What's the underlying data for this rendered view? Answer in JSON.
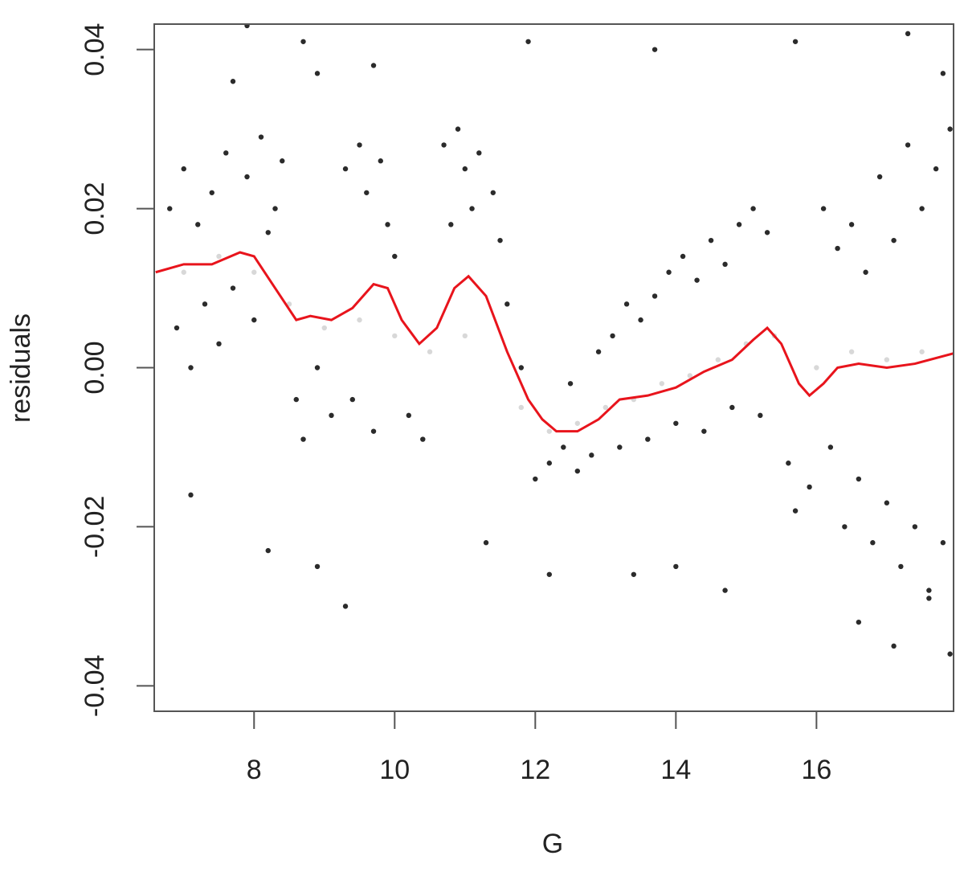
{
  "chart_data": {
    "type": "scatter",
    "x_label": "G",
    "y_label": "residuals",
    "xlim": [
      6.58,
      17.95
    ],
    "ylim": [
      -0.0432,
      0.0432
    ],
    "xticks": [
      8,
      10,
      12,
      14,
      16
    ],
    "yticks": [
      -0.04,
      -0.02,
      {
        "value": 0,
        "label": "0.00"
      },
      0.02,
      0.04
    ],
    "series": [
      {
        "color": "#2b2b2b",
        "x": [
          6.8,
          7.0,
          7.2,
          7.4,
          7.6,
          7.9,
          8.1,
          8.3,
          6.9,
          7.1,
          7.3,
          7.5,
          7.7,
          8.0,
          8.2,
          8.4,
          8.6,
          8.7,
          8.9,
          9.1,
          9.3,
          9.5,
          9.6,
          9.8,
          9.9,
          10.0,
          9.4,
          9.7,
          10.2,
          10.4,
          10.7,
          10.9,
          11.0,
          11.2,
          11.4,
          11.5,
          10.8,
          11.1,
          11.6,
          11.8,
          12.0,
          12.2,
          12.4,
          12.6,
          12.8,
          12.5,
          12.9,
          13.1,
          13.3,
          13.5,
          13.7,
          13.9,
          14.1,
          14.3,
          14.5,
          14.7,
          14.9,
          15.1,
          15.3,
          13.2,
          13.6,
          14.0,
          14.4,
          14.8,
          15.2,
          15.6,
          15.7,
          15.9,
          16.1,
          16.3,
          16.5,
          16.7,
          16.9,
          17.1,
          17.3,
          17.5,
          17.7,
          17.9,
          16.2,
          16.4,
          16.6,
          16.8,
          17.0,
          17.2,
          17.4,
          17.6,
          17.8,
          7.7,
          7.9,
          8.7,
          8.9,
          9.7,
          11.9,
          13.7,
          15.7,
          17.3,
          17.8,
          7.1,
          8.2,
          8.9,
          9.3,
          11.3,
          12.2,
          13.4,
          14.0,
          14.7,
          16.6,
          17.1,
          17.9,
          17.6
        ],
        "values": [
          0.02,
          0.025,
          0.018,
          0.022,
          0.027,
          0.024,
          0.029,
          0.02,
          0.005,
          0.0,
          0.008,
          0.003,
          0.01,
          0.006,
          0.017,
          0.026,
          -0.004,
          -0.009,
          0.0,
          -0.006,
          0.025,
          0.028,
          0.022,
          0.026,
          0.018,
          0.014,
          -0.004,
          -0.008,
          -0.006,
          -0.009,
          0.028,
          0.03,
          0.025,
          0.027,
          0.022,
          0.016,
          0.018,
          0.02,
          0.008,
          0.0,
          -0.014,
          -0.012,
          -0.01,
          -0.013,
          -0.011,
          -0.002,
          0.002,
          0.004,
          0.008,
          0.006,
          0.009,
          0.012,
          0.014,
          0.011,
          0.016,
          0.013,
          0.018,
          0.02,
          0.017,
          -0.01,
          -0.009,
          -0.007,
          -0.008,
          -0.005,
          -0.006,
          -0.012,
          -0.018,
          -0.015,
          0.02,
          0.015,
          0.018,
          0.012,
          0.024,
          0.016,
          0.028,
          0.02,
          0.025,
          0.03,
          -0.01,
          -0.02,
          -0.014,
          -0.022,
          -0.017,
          -0.025,
          -0.02,
          -0.028,
          -0.022,
          0.036,
          0.043,
          0.041,
          0.037,
          0.038,
          0.041,
          0.04,
          0.041,
          0.042,
          0.037,
          -0.016,
          -0.023,
          -0.025,
          -0.03,
          -0.022,
          -0.026,
          -0.026,
          -0.025,
          -0.028,
          -0.032,
          -0.035,
          -0.036,
          -0.029
        ]
      },
      {
        "color": "#d8d8d8",
        "x": [
          7.0,
          7.5,
          8.0,
          8.5,
          9.0,
          9.5,
          10.0,
          10.5,
          11.0,
          11.8,
          12.2,
          12.6,
          13.0,
          13.4,
          13.8,
          14.2,
          14.6,
          15.0,
          15.4,
          16.0,
          16.5,
          17.0,
          17.5
        ],
        "values": [
          0.012,
          0.014,
          0.012,
          0.008,
          0.005,
          0.006,
          0.004,
          0.002,
          0.004,
          -0.005,
          -0.008,
          -0.007,
          -0.005,
          -0.004,
          -0.002,
          -0.001,
          0.001,
          0.003,
          0.004,
          0.0,
          0.002,
          0.001,
          0.002
        ]
      },
      {
        "type": "line",
        "color": "#e8141c",
        "x": [
          6.6,
          7.0,
          7.4,
          7.8,
          8.0,
          8.3,
          8.6,
          8.8,
          9.1,
          9.4,
          9.7,
          9.9,
          10.1,
          10.35,
          10.6,
          10.85,
          11.05,
          11.3,
          11.6,
          11.9,
          12.1,
          12.3,
          12.6,
          12.9,
          13.2,
          13.6,
          14.0,
          14.4,
          14.8,
          15.1,
          15.3,
          15.5,
          15.75,
          15.9,
          16.1,
          16.3,
          16.6,
          17.0,
          17.4,
          17.95
        ],
        "values": [
          0.012,
          0.013,
          0.013,
          0.0145,
          0.014,
          0.01,
          0.006,
          0.0065,
          0.006,
          0.0075,
          0.0105,
          0.01,
          0.006,
          0.003,
          0.005,
          0.01,
          0.0115,
          0.009,
          0.002,
          -0.004,
          -0.0065,
          -0.008,
          -0.008,
          -0.0065,
          -0.004,
          -0.0035,
          -0.0025,
          -0.0005,
          0.001,
          0.0035,
          0.005,
          0.003,
          -0.002,
          -0.0035,
          -0.002,
          0.0,
          0.0005,
          0.0,
          0.0005,
          0.0018
        ]
      }
    ]
  }
}
